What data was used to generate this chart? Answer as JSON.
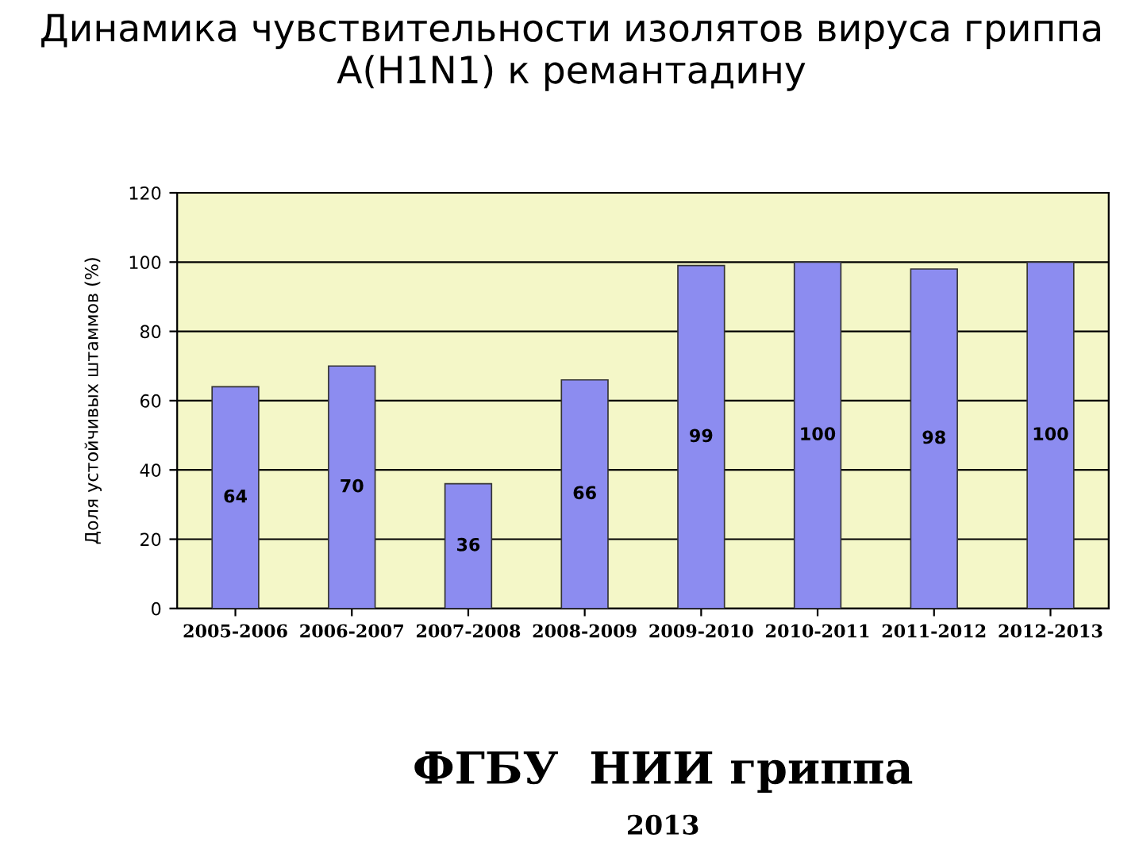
{
  "chart_data": {
    "type": "bar",
    "title": "Динамика чувствительности изолятов вируса гриппа А(H1N1) к ремантадину",
    "ylabel": "Доля устойчивых штаммов (%)",
    "categories": [
      "2005-2006",
      "2006-2007",
      "2007-2008",
      "2008-2009",
      "2009-2010",
      "2010-2011",
      "2011-2012",
      "2012-2013"
    ],
    "values": [
      64,
      70,
      36,
      66,
      99,
      100,
      98,
      100
    ],
    "color": "#8c8cf0",
    "data_labels": true,
    "ylim": [
      0,
      120
    ],
    "yticks": [
      0,
      20,
      40,
      60,
      80,
      100,
      120
    ],
    "grid": "y",
    "annotations": [
      "ФГБУ  НИИ гриппа",
      "2013"
    ]
  }
}
